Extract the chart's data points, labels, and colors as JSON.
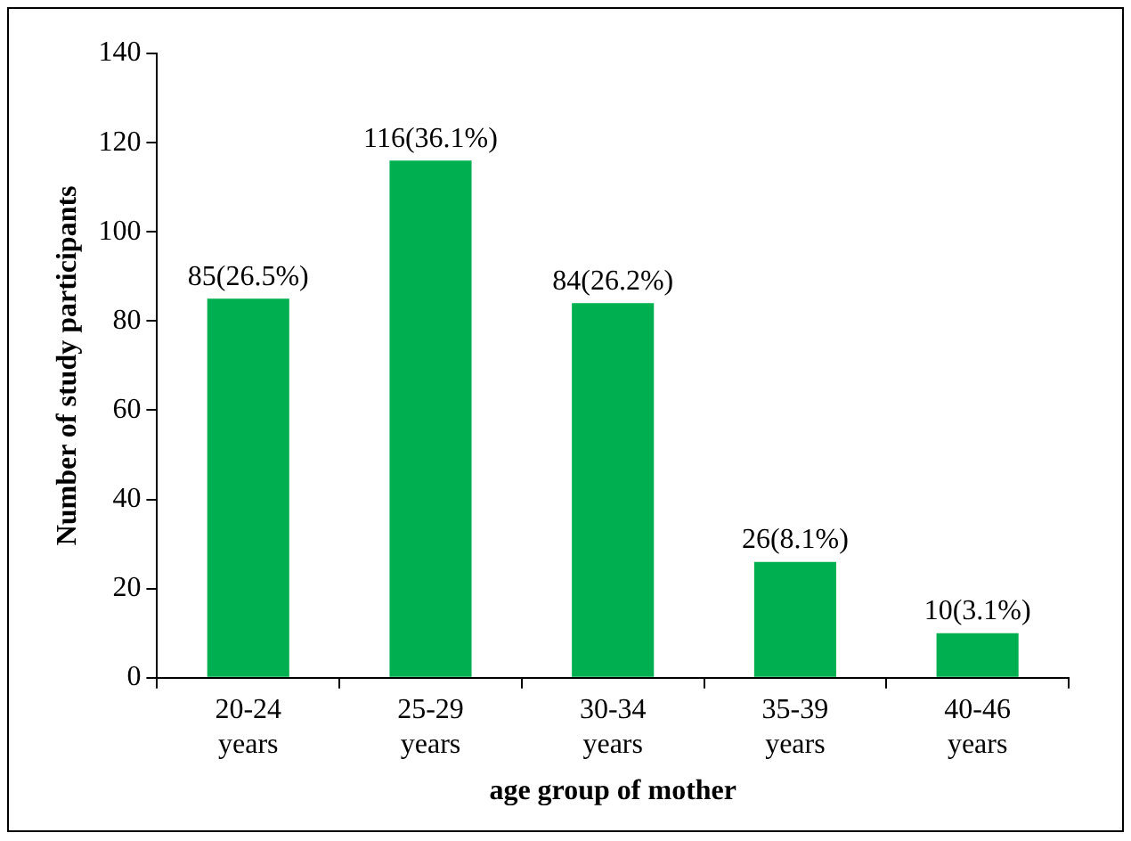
{
  "chart_data": {
    "type": "bar",
    "xlabel": "age group of mother",
    "ylabel": "Number of study participants",
    "categories": [
      "20-24 years",
      "25-29 years",
      "30-34 years",
      "35-39 years",
      "40-46 years"
    ],
    "values": [
      85,
      116,
      84,
      26,
      10
    ],
    "value_labels": [
      "85(26.5%)",
      "116(36.1%)",
      "84(26.2%)",
      "26(8.1%)",
      "10(3.1%)"
    ],
    "color": "#00b050",
    "ylim": [
      0,
      140
    ],
    "yticks": [
      0,
      20,
      40,
      60,
      80,
      100,
      120,
      140
    ],
    "legend": false
  }
}
